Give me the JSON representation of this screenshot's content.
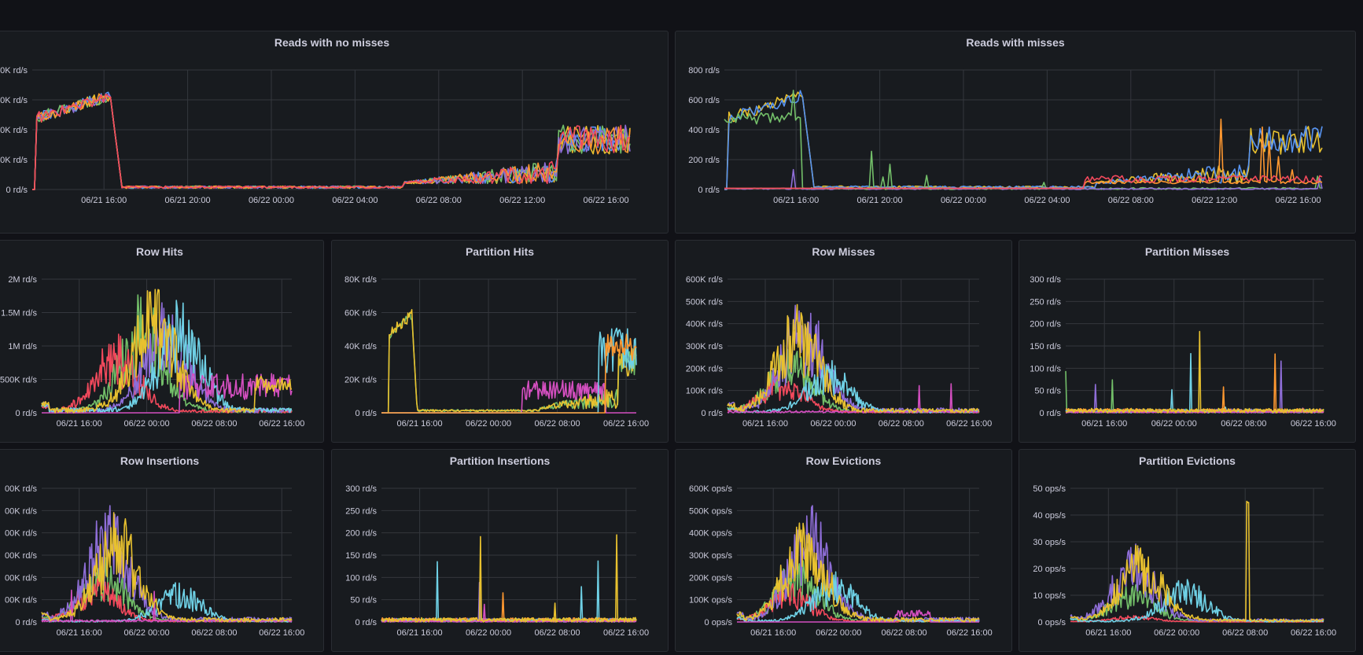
{
  "panels": [
    {
      "id": "reads-with-no-misses",
      "title": "Reads with no misses",
      "ylabels": [
        "0 rd/s",
        "0K rd/s",
        "0K rd/s",
        "0K rd/s",
        "0K rd/s"
      ],
      "xlabels": [
        "06/21 16:00",
        "06/21 20:00",
        "06/22 00:00",
        "06/22 04:00",
        "06/22 08:00",
        "06/22 12:00",
        "06/22 16:00"
      ]
    },
    {
      "id": "reads-with-misses",
      "title": "Reads with misses",
      "ylabels": [
        "0 rd/s",
        "200 rd/s",
        "400 rd/s",
        "600 rd/s",
        "800 rd/s"
      ],
      "xlabels": [
        "06/21 16:00",
        "06/21 20:00",
        "06/22 00:00",
        "06/22 04:00",
        "06/22 08:00",
        "06/22 12:00",
        "06/22 16:00"
      ]
    },
    {
      "id": "row-hits",
      "title": "Row Hits",
      "ylabels": [
        "0 rd/s",
        "500K rd/s",
        "1M rd/s",
        "1.5M rd/s",
        "2M rd/s"
      ],
      "xlabels": [
        "06/21 16:00",
        "06/22 00:00",
        "06/22 08:00",
        "06/22 16:00"
      ]
    },
    {
      "id": "partition-hits",
      "title": "Partition Hits",
      "ylabels": [
        "0 rd/s",
        "20K rd/s",
        "40K rd/s",
        "60K rd/s",
        "80K rd/s"
      ],
      "xlabels": [
        "06/21 16:00",
        "06/22 00:00",
        "06/22 08:00",
        "06/22 16:00"
      ]
    },
    {
      "id": "row-misses",
      "title": "Row Misses",
      "ylabels": [
        "0 rd/s",
        "100K rd/s",
        "200K rd/s",
        "300K rd/s",
        "400K rd/s",
        "500K rd/s",
        "600K rd/s"
      ],
      "xlabels": [
        "06/21 16:00",
        "06/22 00:00",
        "06/22 08:00",
        "06/22 16:00"
      ]
    },
    {
      "id": "partition-misses",
      "title": "Partition Misses",
      "ylabels": [
        "0 rd/s",
        "50 rd/s",
        "100 rd/s",
        "150 rd/s",
        "200 rd/s",
        "250 rd/s",
        "300 rd/s"
      ],
      "xlabels": [
        "06/21 16:00",
        "06/22 00:00",
        "06/22 08:00",
        "06/22 16:00"
      ]
    },
    {
      "id": "row-insertions",
      "title": "Row Insertions",
      "ylabels": [
        "0 rd/s",
        "00K rd/s",
        "00K rd/s",
        "00K rd/s",
        "00K rd/s",
        "00K rd/s",
        "00K rd/s"
      ],
      "xlabels": [
        "06/21 16:00",
        "06/22 00:00",
        "06/22 08:00",
        "06/22 16:00"
      ]
    },
    {
      "id": "partition-insertions",
      "title": "Partition Insertions",
      "ylabels": [
        "0 rd/s",
        "50 rd/s",
        "100 rd/s",
        "150 rd/s",
        "200 rd/s",
        "250 rd/s",
        "300 rd/s"
      ],
      "xlabels": [
        "06/21 16:00",
        "06/22 00:00",
        "06/22 08:00",
        "06/22 16:00"
      ]
    },
    {
      "id": "row-evictions",
      "title": "Row Evictions",
      "ylabels": [
        "0 ops/s",
        "100K ops/s",
        "200K ops/s",
        "300K ops/s",
        "400K ops/s",
        "500K ops/s",
        "600K ops/s"
      ],
      "xlabels": [
        "06/21 16:00",
        "06/22 00:00",
        "06/22 08:00",
        "06/22 16:00"
      ]
    },
    {
      "id": "partition-evictions",
      "title": "Partition Evictions",
      "ylabels": [
        "0 ops/s",
        "10 ops/s",
        "20 ops/s",
        "30 ops/s",
        "40 ops/s",
        "50 ops/s"
      ],
      "xlabels": [
        "06/21 16:00",
        "06/22 00:00",
        "06/22 08:00",
        "06/22 16:00"
      ]
    }
  ],
  "series_colors": {
    "yellow": "#e8c12f",
    "blue": "#5794f2",
    "green": "#73bf69",
    "purple": "#8f6ed8",
    "orange": "#ff9830",
    "red": "#f2495c",
    "cyan": "#6fd1e6",
    "magenta": "#d44fc0"
  }
}
